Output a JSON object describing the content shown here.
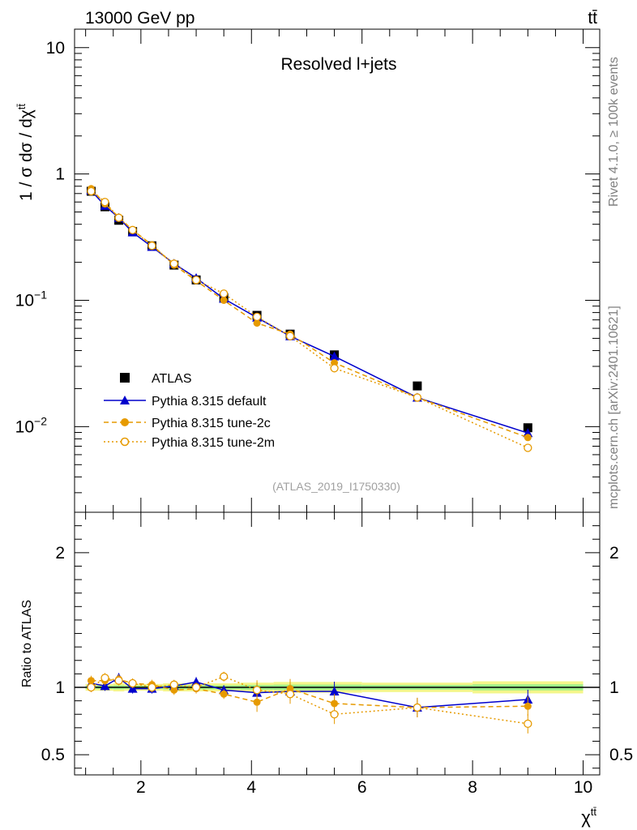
{
  "header": {
    "energy_label": "13000 GeV pp",
    "process_label": "tt̄",
    "rivet_label": "Rivet 4.1.0, ≥ 100k events",
    "mcplots_label": "mcplots.cern.ch [arXiv:2401.10621]"
  },
  "colors": {
    "atlas": "#000000",
    "default": "#0000cc",
    "tune2c": "#e69a00",
    "tune2m": "#e69a00",
    "band_inner": "#9ef08a",
    "band_outer": "#f4f68a"
  },
  "chart_data": [
    {
      "type": "line",
      "title": "Resolved l+jets",
      "watermark": "(ATLAS_2019_I1750330)",
      "ylabel": "1 / σ dσ / dχ",
      "ylabel_sup": "tt̄",
      "yscale": "log",
      "xlim": [
        0.8,
        10.3
      ],
      "ylim": [
        0.0021,
        14
      ],
      "yticks": [
        {
          "value": 10,
          "label": "10"
        },
        {
          "value": 1,
          "label": "1"
        },
        {
          "value": 0.1,
          "label": "10",
          "exp": "−1"
        },
        {
          "value": 0.01,
          "label": "10",
          "exp": "−2"
        }
      ],
      "x": [
        1.1,
        1.35,
        1.6,
        1.85,
        2.2,
        2.6,
        3.0,
        3.5,
        4.1,
        4.7,
        5.5,
        7.0,
        9.0
      ],
      "series": [
        {
          "name": "ATLAS",
          "style": "data",
          "values": [
            0.73,
            0.55,
            0.43,
            0.35,
            0.27,
            0.19,
            0.145,
            0.105,
            0.076,
            0.054,
            0.037,
            0.021,
            0.0098
          ]
        },
        {
          "name": "Pythia 8.315 default",
          "style": "default",
          "values": [
            0.74,
            0.56,
            0.45,
            0.345,
            0.265,
            0.195,
            0.15,
            0.103,
            0.073,
            0.052,
            0.036,
            0.017,
            0.0089
          ]
        },
        {
          "name": "Pythia 8.315 tune-2c",
          "style": "tune2c",
          "values": [
            0.765,
            0.58,
            0.455,
            0.36,
            0.275,
            0.19,
            0.143,
            0.1,
            0.066,
            0.054,
            0.032,
            0.017,
            0.0082
          ]
        },
        {
          "name": "Pythia 8.315 tune-2m",
          "style": "tune2m",
          "values": [
            0.73,
            0.6,
            0.45,
            0.36,
            0.27,
            0.195,
            0.145,
            0.113,
            0.074,
            0.052,
            0.029,
            0.017,
            0.0068
          ]
        }
      ]
    },
    {
      "type": "line",
      "ylabel": "Ratio to ATLAS",
      "xlabel": "χ",
      "xlabel_sup": "tt̄",
      "xlim": [
        0.8,
        10.3
      ],
      "ylim": [
        0.35,
        2.3
      ],
      "xticks": [
        2,
        4,
        6,
        8,
        10
      ],
      "yticks": [
        {
          "value": 0.5,
          "label": "0.5"
        },
        {
          "value": 1,
          "label": "1"
        },
        {
          "value": 2,
          "label": "2"
        }
      ],
      "x": [
        1.1,
        1.35,
        1.6,
        1.85,
        2.2,
        2.6,
        3.0,
        3.5,
        4.1,
        4.7,
        5.5,
        7.0,
        9.0
      ],
      "series": [
        {
          "name": "Pythia 8.315 default",
          "style": "default",
          "values": [
            1.03,
            1.01,
            1.07,
            0.99,
            0.99,
            1.01,
            1.04,
            0.98,
            0.96,
            0.97,
            0.97,
            0.85,
            0.91
          ]
        },
        {
          "name": "Pythia 8.315 tune-2c",
          "style": "tune2c",
          "values": [
            1.05,
            1.05,
            1.06,
            1.03,
            1.02,
            0.98,
            0.99,
            0.95,
            0.89,
            0.99,
            0.88,
            0.85,
            0.86
          ]
        },
        {
          "name": "Pythia 8.315 tune-2m",
          "style": "tune2m",
          "values": [
            1.0,
            1.07,
            1.05,
            1.03,
            1.0,
            1.02,
            1.0,
            1.08,
            0.98,
            0.95,
            0.8,
            0.85,
            0.73
          ]
        }
      ]
    }
  ]
}
